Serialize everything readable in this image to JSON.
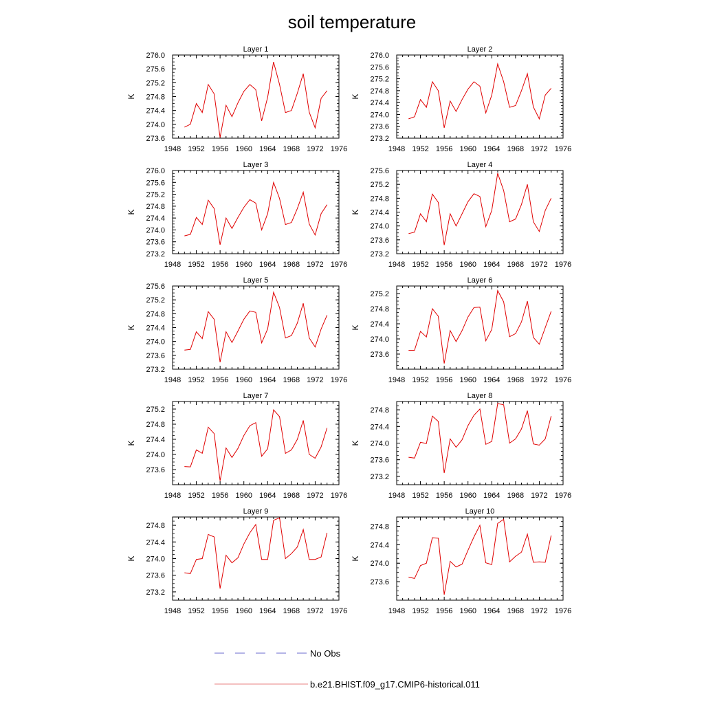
{
  "title": "soil temperature",
  "legend": {
    "entries": [
      {
        "label": "No Obs",
        "color": "#6a6acd",
        "style": "dashed"
      },
      {
        "label": "b.e21.BHIST.f09_g17.CMIP6-historical.011",
        "color": "#e88080",
        "style": "solid"
      }
    ]
  },
  "chart_data": [
    {
      "type": "line",
      "title": "Layer 1",
      "ylabel": "K",
      "xlim": [
        1948,
        1976
      ],
      "ylim": [
        273.6,
        276.0
      ],
      "xticks": [
        1948,
        1952,
        1956,
        1960,
        1964,
        1968,
        1972,
        1976
      ],
      "yticks": [
        "273.6",
        "274.0",
        "274.4",
        "274.8",
        "275.2",
        "275.6",
        "276.0"
      ],
      "series": [
        {
          "name": "b.e21.BHIST.f09_g17.CMIP6-historical.011",
          "color": "#e00000",
          "x": [
            1950,
            1951,
            1952,
            1953,
            1954,
            1955,
            1956,
            1957,
            1958,
            1959,
            1960,
            1961,
            1962,
            1963,
            1964,
            1965,
            1966,
            1967,
            1968,
            1969,
            1970,
            1971,
            1972,
            1973,
            1974
          ],
          "y": [
            273.92,
            274.0,
            274.6,
            274.34,
            275.15,
            274.88,
            273.62,
            274.55,
            274.22,
            274.62,
            274.95,
            275.15,
            275.0,
            274.1,
            274.78,
            275.8,
            275.15,
            274.34,
            274.4,
            274.9,
            275.46,
            274.35,
            273.9,
            274.75,
            274.97
          ]
        }
      ]
    },
    {
      "type": "line",
      "title": "Layer 2",
      "ylabel": "K",
      "xlim": [
        1948,
        1976
      ],
      "ylim": [
        273.2,
        276.0
      ],
      "xticks": [
        1948,
        1952,
        1956,
        1960,
        1964,
        1968,
        1972,
        1976
      ],
      "yticks": [
        "273.2",
        "273.6",
        "274.0",
        "274.4",
        "274.8",
        "275.2",
        "275.6",
        "276.0"
      ],
      "series": [
        {
          "name": "b.e21.BHIST.f09_g17.CMIP6-historical.011",
          "color": "#e00000",
          "x": [
            1950,
            1951,
            1952,
            1953,
            1954,
            1955,
            1956,
            1957,
            1958,
            1959,
            1960,
            1961,
            1962,
            1963,
            1964,
            1965,
            1966,
            1967,
            1968,
            1969,
            1970,
            1971,
            1972,
            1973,
            1974
          ],
          "y": [
            273.85,
            273.92,
            274.5,
            274.24,
            275.1,
            274.8,
            273.55,
            274.45,
            274.1,
            274.5,
            274.85,
            275.1,
            274.95,
            274.05,
            274.65,
            275.7,
            275.1,
            274.24,
            274.3,
            274.8,
            275.37,
            274.25,
            273.85,
            274.65,
            274.88
          ]
        }
      ]
    },
    {
      "type": "line",
      "title": "Layer 3",
      "ylabel": "K",
      "xlim": [
        1948,
        1976
      ],
      "ylim": [
        273.2,
        276.0
      ],
      "xticks": [
        1948,
        1952,
        1956,
        1960,
        1964,
        1968,
        1972,
        1976
      ],
      "yticks": [
        "273.2",
        "273.6",
        "274.0",
        "274.4",
        "274.8",
        "275.2",
        "275.6",
        "276.0"
      ],
      "series": [
        {
          "name": "b.e21.BHIST.f09_g17.CMIP6-historical.011",
          "color": "#e00000",
          "x": [
            1950,
            1951,
            1952,
            1953,
            1954,
            1955,
            1956,
            1957,
            1958,
            1959,
            1960,
            1961,
            1962,
            1963,
            1964,
            1965,
            1966,
            1967,
            1968,
            1969,
            1970,
            1971,
            1972,
            1973,
            1974
          ],
          "y": [
            273.8,
            273.85,
            274.42,
            274.18,
            275.0,
            274.72,
            273.5,
            274.4,
            274.05,
            274.42,
            274.76,
            275.02,
            274.9,
            274.0,
            274.55,
            275.6,
            275.06,
            274.18,
            274.25,
            274.72,
            275.27,
            274.2,
            273.83,
            274.55,
            274.85
          ]
        }
      ]
    },
    {
      "type": "line",
      "title": "Layer 4",
      "ylabel": "K",
      "xlim": [
        1948,
        1976
      ],
      "ylim": [
        273.2,
        275.6
      ],
      "xticks": [
        1948,
        1952,
        1956,
        1960,
        1964,
        1968,
        1972,
        1976
      ],
      "yticks": [
        "273.2",
        "273.6",
        "274.0",
        "274.4",
        "274.8",
        "275.2",
        "275.6"
      ],
      "series": [
        {
          "name": "b.e21.BHIST.f09_g17.CMIP6-historical.011",
          "color": "#e00000",
          "x": [
            1950,
            1951,
            1952,
            1953,
            1954,
            1955,
            1956,
            1957,
            1958,
            1959,
            1960,
            1961,
            1962,
            1963,
            1964,
            1965,
            1966,
            1967,
            1968,
            1969,
            1970,
            1971,
            1972,
            1973,
            1974
          ],
          "y": [
            273.78,
            273.82,
            274.35,
            274.12,
            274.92,
            274.68,
            273.45,
            274.35,
            274.0,
            274.35,
            274.7,
            274.93,
            274.85,
            273.98,
            274.45,
            275.52,
            275.02,
            274.12,
            274.2,
            274.62,
            275.2,
            274.12,
            273.84,
            274.45,
            274.8
          ]
        }
      ]
    },
    {
      "type": "line",
      "title": "Layer 5",
      "ylabel": "K",
      "xlim": [
        1948,
        1976
      ],
      "ylim": [
        273.2,
        275.6
      ],
      "xticks": [
        1948,
        1952,
        1956,
        1960,
        1964,
        1968,
        1972,
        1976
      ],
      "yticks": [
        "273.2",
        "273.6",
        "274.0",
        "274.4",
        "274.8",
        "275.2",
        "275.6"
      ],
      "series": [
        {
          "name": "b.e21.BHIST.f09_g17.CMIP6-historical.011",
          "color": "#e00000",
          "x": [
            1950,
            1951,
            1952,
            1953,
            1954,
            1955,
            1956,
            1957,
            1958,
            1959,
            1960,
            1961,
            1962,
            1963,
            1964,
            1965,
            1966,
            1967,
            1968,
            1969,
            1970,
            1971,
            1972,
            1973,
            1974
          ],
          "y": [
            273.75,
            273.77,
            274.28,
            274.08,
            274.86,
            274.64,
            273.4,
            274.28,
            273.97,
            274.3,
            274.64,
            274.88,
            274.84,
            273.96,
            274.36,
            275.42,
            274.98,
            274.1,
            274.17,
            274.53,
            275.1,
            274.1,
            273.84,
            274.36,
            274.76
          ]
        }
      ]
    },
    {
      "type": "line",
      "title": "Layer 6",
      "ylabel": "K",
      "xlim": [
        1948,
        1976
      ],
      "ylim": [
        273.2,
        275.4
      ],
      "xticks": [
        1948,
        1952,
        1956,
        1960,
        1964,
        1968,
        1972,
        1976
      ],
      "yticks": [
        "273.6",
        "274.0",
        "274.4",
        "274.8",
        "275.2"
      ],
      "series": [
        {
          "name": "b.e21.BHIST.f09_g17.CMIP6-historical.011",
          "color": "#e00000",
          "x": [
            1950,
            1951,
            1952,
            1953,
            1954,
            1955,
            1956,
            1957,
            1958,
            1959,
            1960,
            1961,
            1962,
            1963,
            1964,
            1965,
            1966,
            1967,
            1968,
            1969,
            1970,
            1971,
            1972,
            1973,
            1974
          ],
          "y": [
            273.7,
            273.7,
            274.2,
            274.05,
            274.8,
            274.6,
            273.35,
            274.22,
            273.93,
            274.22,
            274.58,
            274.83,
            274.84,
            273.95,
            274.25,
            275.28,
            274.98,
            274.06,
            274.14,
            274.45,
            275.0,
            274.04,
            273.86,
            274.3,
            274.73
          ]
        }
      ]
    },
    {
      "type": "line",
      "title": "Layer 7",
      "ylabel": "K",
      "xlim": [
        1948,
        1976
      ],
      "ylim": [
        273.2,
        275.4
      ],
      "xticks": [
        1948,
        1952,
        1956,
        1960,
        1964,
        1968,
        1972,
        1976
      ],
      "yticks": [
        "273.6",
        "274.0",
        "274.4",
        "274.8",
        "275.2"
      ],
      "series": [
        {
          "name": "b.e21.BHIST.f09_g17.CMIP6-historical.011",
          "color": "#e00000",
          "x": [
            1950,
            1951,
            1952,
            1953,
            1954,
            1955,
            1956,
            1957,
            1958,
            1959,
            1960,
            1961,
            1962,
            1963,
            1964,
            1965,
            1966,
            1967,
            1968,
            1969,
            1970,
            1971,
            1972,
            1973,
            1974
          ],
          "y": [
            273.68,
            273.67,
            274.12,
            274.03,
            274.72,
            274.55,
            273.3,
            274.17,
            273.92,
            274.16,
            274.5,
            274.76,
            274.84,
            273.95,
            274.15,
            275.18,
            275.0,
            274.03,
            274.12,
            274.4,
            274.9,
            274.0,
            273.9,
            274.2,
            274.7
          ]
        }
      ]
    },
    {
      "type": "line",
      "title": "Layer 8",
      "ylabel": "K",
      "xlim": [
        1948,
        1976
      ],
      "ylim": [
        273.0,
        275.0
      ],
      "xticks": [
        1948,
        1952,
        1956,
        1960,
        1964,
        1968,
        1972,
        1976
      ],
      "yticks": [
        "273.2",
        "273.6",
        "274.0",
        "274.4",
        "274.8"
      ],
      "series": [
        {
          "name": "b.e21.BHIST.f09_g17.CMIP6-historical.011",
          "color": "#e00000",
          "x": [
            1950,
            1951,
            1952,
            1953,
            1954,
            1955,
            1956,
            1957,
            1958,
            1959,
            1960,
            1961,
            1962,
            1963,
            1964,
            1965,
            1966,
            1967,
            1968,
            1969,
            1970,
            1971,
            1972,
            1973,
            1974
          ],
          "y": [
            273.66,
            273.64,
            274.02,
            273.99,
            274.65,
            274.52,
            273.28,
            274.1,
            273.9,
            274.08,
            274.42,
            274.67,
            274.82,
            273.97,
            274.04,
            274.95,
            274.92,
            274.0,
            274.1,
            274.34,
            274.78,
            273.98,
            273.95,
            274.1,
            274.65
          ]
        }
      ]
    },
    {
      "type": "line",
      "title": "Layer 9",
      "ylabel": "K",
      "xlim": [
        1948,
        1976
      ],
      "ylim": [
        273.0,
        275.0
      ],
      "xticks": [
        1948,
        1952,
        1956,
        1960,
        1964,
        1968,
        1972,
        1976
      ],
      "yticks": [
        "273.2",
        "273.6",
        "274.0",
        "274.4",
        "274.8"
      ],
      "series": [
        {
          "name": "b.e21.BHIST.f09_g17.CMIP6-historical.011",
          "color": "#e00000",
          "x": [
            1950,
            1951,
            1952,
            1953,
            1954,
            1955,
            1956,
            1957,
            1958,
            1959,
            1960,
            1961,
            1962,
            1963,
            1964,
            1965,
            1966,
            1967,
            1968,
            1969,
            1970,
            1971,
            1972,
            1973,
            1974
          ],
          "y": [
            273.66,
            273.64,
            273.98,
            274.0,
            274.58,
            274.52,
            273.28,
            274.08,
            273.9,
            274.02,
            274.35,
            274.62,
            274.82,
            273.98,
            273.98,
            274.92,
            274.98,
            274.0,
            274.12,
            274.28,
            274.7,
            273.98,
            273.98,
            274.04,
            274.62
          ]
        }
      ]
    },
    {
      "type": "line",
      "title": "Layer 10",
      "ylabel": "K",
      "xlim": [
        1948,
        1976
      ],
      "ylim": [
        273.2,
        275.0
      ],
      "xticks": [
        1948,
        1952,
        1956,
        1960,
        1964,
        1968,
        1972,
        1976
      ],
      "yticks": [
        "273.6",
        "274.0",
        "274.4",
        "274.8"
      ],
      "series": [
        {
          "name": "b.e21.BHIST.f09_g17.CMIP6-historical.011",
          "color": "#e00000",
          "x": [
            1950,
            1951,
            1952,
            1953,
            1954,
            1955,
            1956,
            1957,
            1958,
            1959,
            1960,
            1961,
            1962,
            1963,
            1964,
            1965,
            1966,
            1967,
            1968,
            1969,
            1970,
            1971,
            1972,
            1973,
            1974
          ],
          "y": [
            273.7,
            273.67,
            273.95,
            274.0,
            274.55,
            274.54,
            273.32,
            274.04,
            273.92,
            273.98,
            274.28,
            274.57,
            274.82,
            274.01,
            273.97,
            274.86,
            274.95,
            274.03,
            274.15,
            274.24,
            274.63,
            274.02,
            274.03,
            274.02,
            274.6
          ]
        }
      ]
    }
  ]
}
